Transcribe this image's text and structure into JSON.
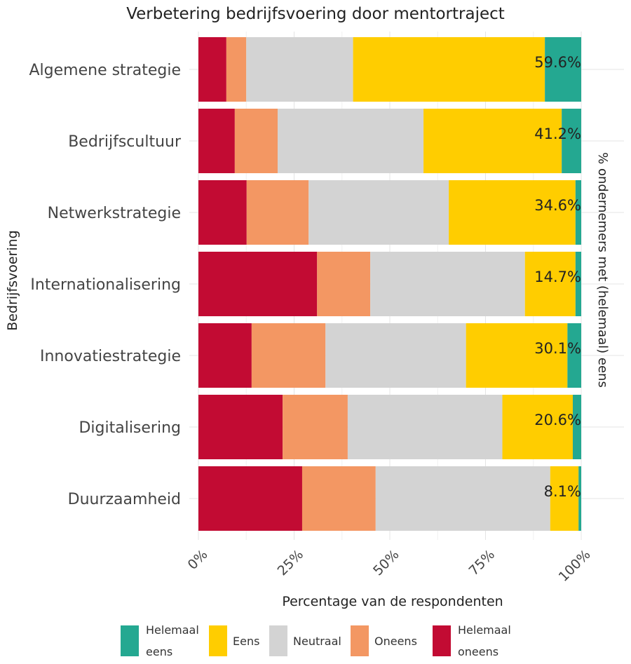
{
  "chart_data": {
    "type": "bar",
    "orientation": "horizontal",
    "stacked": true,
    "title": "Verbetering bedrijfsvoering door mentortraject",
    "xlabel": "Percentage van de respondenten",
    "ylabel": "Bedrijfsvoering",
    "secondary_ylabel": "% ondernemers met (helemaal) eens",
    "xlim": [
      0,
      100
    ],
    "xticks": [
      "0%",
      "25%",
      "50%",
      "75%",
      "100%"
    ],
    "grid": true,
    "legend_position": "bottom",
    "categories": [
      "Algemene strategie",
      "Bedrijfscultuur",
      "Netwerkstrategie",
      "Internationalisering",
      "Innovatiestrategie",
      "Digitalisering",
      "Duurzaamheid"
    ],
    "series": [
      {
        "name": "Helemaal oneens",
        "color": "#c20b33",
        "values": [
          7.3,
          9.5,
          12.6,
          31.0,
          13.9,
          22.0,
          27.1
        ]
      },
      {
        "name": "Oneens",
        "color": "#f39763",
        "values": [
          5.2,
          11.2,
          16.2,
          13.9,
          19.3,
          17.0,
          19.2
        ]
      },
      {
        "name": "Neutraal",
        "color": "#d3d3d3",
        "values": [
          27.9,
          38.1,
          36.6,
          40.4,
          36.7,
          40.4,
          45.6
        ]
      },
      {
        "name": "Eens",
        "color": "#ffcd00",
        "values": [
          50.1,
          36.1,
          33.1,
          13.2,
          26.5,
          18.4,
          7.4
        ]
      },
      {
        "name": "Helemaal eens",
        "color": "#24a891",
        "values": [
          9.5,
          5.1,
          1.5,
          1.5,
          3.6,
          2.2,
          0.7
        ]
      }
    ],
    "data_labels": [
      "59.6%",
      "41.2%",
      "34.6%",
      "14.7%",
      "30.1%",
      "20.6%",
      "8.1%"
    ],
    "legend": [
      {
        "label": [
          "Helemaal",
          "eens"
        ],
        "color": "#24a891"
      },
      {
        "label": [
          "Eens"
        ],
        "color": "#ffcd00"
      },
      {
        "label": [
          "Neutraal"
        ],
        "color": "#d3d3d3"
      },
      {
        "label": [
          "Oneens"
        ],
        "color": "#f39763"
      },
      {
        "label": [
          "Helemaal",
          "oneens"
        ],
        "color": "#c20b33"
      }
    ]
  }
}
